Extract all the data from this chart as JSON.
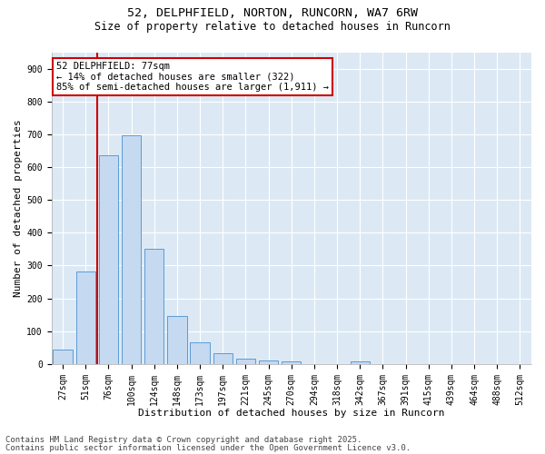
{
  "title1": "52, DELPHFIELD, NORTON, RUNCORN, WA7 6RW",
  "title2": "Size of property relative to detached houses in Runcorn",
  "xlabel": "Distribution of detached houses by size in Runcorn",
  "ylabel": "Number of detached properties",
  "categories": [
    "27sqm",
    "51sqm",
    "76sqm",
    "100sqm",
    "124sqm",
    "148sqm",
    "173sqm",
    "197sqm",
    "221sqm",
    "245sqm",
    "270sqm",
    "294sqm",
    "318sqm",
    "342sqm",
    "367sqm",
    "391sqm",
    "415sqm",
    "439sqm",
    "464sqm",
    "488sqm",
    "512sqm"
  ],
  "values": [
    45,
    283,
    635,
    698,
    350,
    147,
    67,
    32,
    15,
    10,
    8,
    0,
    0,
    8,
    0,
    0,
    0,
    0,
    0,
    0,
    0
  ],
  "bar_color": "#c5d9f0",
  "bar_edge_color": "#5b9bd5",
  "vline_x_index": 2,
  "vline_color": "#cc0000",
  "annotation_text": "52 DELPHFIELD: 77sqm\n← 14% of detached houses are smaller (322)\n85% of semi-detached houses are larger (1,911) →",
  "annotation_box_color": "#ffffff",
  "annotation_box_edge": "#cc0000",
  "ylim": [
    0,
    950
  ],
  "yticks": [
    0,
    100,
    200,
    300,
    400,
    500,
    600,
    700,
    800,
    900
  ],
  "footer1": "Contains HM Land Registry data © Crown copyright and database right 2025.",
  "footer2": "Contains public sector information licensed under the Open Government Licence v3.0.",
  "bg_color": "#dce9f5",
  "title1_fontsize": 9.5,
  "title2_fontsize": 8.5,
  "tick_fontsize": 7,
  "xlabel_fontsize": 8,
  "ylabel_fontsize": 8,
  "footer_fontsize": 6.5
}
